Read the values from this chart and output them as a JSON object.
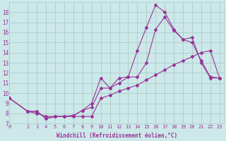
{
  "xlabel": "Windchill (Refroidissement éolien,°C)",
  "background_color": "#cce8e8",
  "grid_color": "#aacccc",
  "line_color": "#993399",
  "x_ticks": [
    0,
    2,
    3,
    4,
    5,
    6,
    7,
    8,
    9,
    10,
    11,
    12,
    13,
    14,
    15,
    16,
    17,
    18,
    19,
    20,
    21,
    22,
    23
  ],
  "y_ticks": [
    7,
    8,
    9,
    10,
    11,
    12,
    13,
    14,
    15,
    16,
    17,
    18
  ],
  "xlim": [
    0,
    23.5
  ],
  "ylim": [
    7.0,
    19.0
  ],
  "line1_x": [
    0,
    2,
    3,
    4,
    5,
    6,
    7,
    8,
    9,
    10,
    11,
    12,
    13,
    14,
    15,
    16,
    17,
    18,
    19,
    20,
    21,
    22,
    23
  ],
  "line1_y": [
    9.5,
    8.2,
    8.2,
    7.5,
    7.7,
    7.7,
    7.8,
    8.3,
    9.0,
    11.5,
    10.5,
    11.5,
    11.6,
    14.2,
    16.5,
    18.7,
    18.0,
    16.3,
    15.3,
    15.0,
    13.2,
    11.6,
    11.5
  ],
  "line2_x": [
    0,
    2,
    3,
    4,
    5,
    6,
    7,
    8,
    9,
    10,
    11,
    12,
    13,
    14,
    15,
    16,
    17,
    18,
    19,
    20,
    21,
    22,
    23
  ],
  "line2_y": [
    9.5,
    8.2,
    8.2,
    7.5,
    7.7,
    7.7,
    7.8,
    8.3,
    8.6,
    10.5,
    10.5,
    11.0,
    11.6,
    11.6,
    13.0,
    16.3,
    17.5,
    16.2,
    15.3,
    15.5,
    13.0,
    11.5,
    11.5
  ],
  "line3_x": [
    0,
    2,
    3,
    4,
    5,
    6,
    7,
    8,
    9,
    10,
    11,
    12,
    13,
    14,
    15,
    16,
    17,
    18,
    19,
    20,
    21,
    22,
    23
  ],
  "line3_y": [
    9.5,
    8.2,
    8.0,
    7.7,
    7.7,
    7.7,
    7.7,
    7.7,
    7.7,
    9.5,
    9.8,
    10.2,
    10.5,
    10.8,
    11.3,
    11.8,
    12.3,
    12.8,
    13.2,
    13.6,
    14.0,
    14.2,
    11.5
  ]
}
